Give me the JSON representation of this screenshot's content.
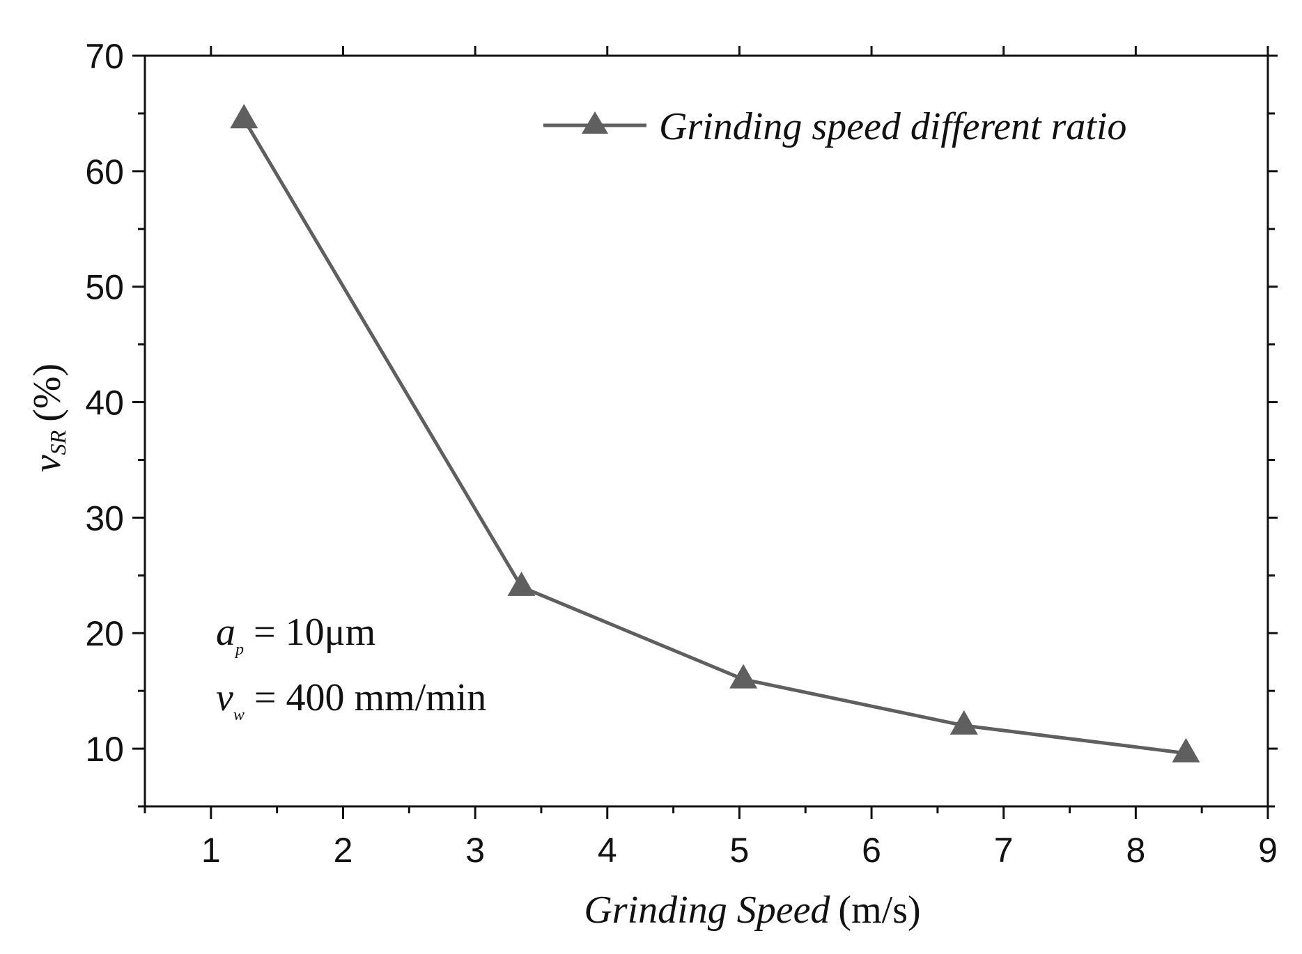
{
  "chart_data": {
    "type": "line",
    "title": "",
    "xlabel": "Grinding Speed",
    "xlabel_unit": "(m/s)",
    "ylabel": "v",
    "ylabel_sub": "SR",
    "ylabel_unit": "(%)",
    "xlim": [
      0.5,
      9
    ],
    "ylim": [
      5,
      70
    ],
    "x_ticks": [
      1,
      2,
      3,
      4,
      5,
      6,
      7,
      8,
      9
    ],
    "y_ticks": [
      10,
      20,
      30,
      40,
      50,
      60,
      70
    ],
    "series": [
      {
        "name": "Grinding speed different ratio",
        "marker": "triangle",
        "color": "#5f5f5f",
        "x": [
          1.25,
          3.35,
          5.03,
          6.7,
          8.38
        ],
        "values": [
          64.5,
          24.0,
          16.0,
          12.0,
          9.6
        ]
      }
    ],
    "legend_position": "top-right",
    "grid": false,
    "annotations": [
      {
        "symbol": "a",
        "sub": "p",
        "text": " = 10μm"
      },
      {
        "symbol": "v",
        "sub": "w",
        "text": " = 400 mm/min"
      }
    ]
  }
}
